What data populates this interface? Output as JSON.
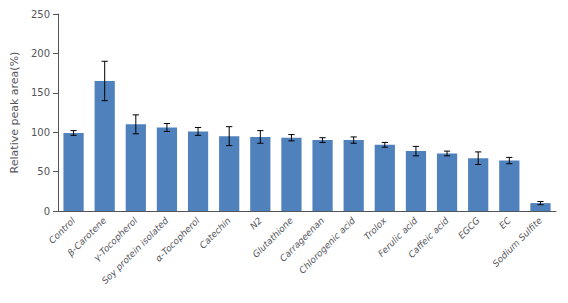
{
  "chart_data": {
    "type": "bar",
    "categories": [
      "Control",
      "β-Carotene",
      "γ-Tocopherol",
      "Soy protein isolated",
      "α-Tocopherol",
      "Catechin",
      "N2",
      "Glutathione",
      "Carrageenan",
      "Chlorogenic acid",
      "Trolox",
      "Ferulic acid",
      "Caffeic acid",
      "EGCG",
      "EC",
      "Sodium Sulfite"
    ],
    "values": [
      99,
      165,
      110,
      106,
      101,
      95,
      94,
      93,
      90,
      90,
      84,
      76,
      73,
      67,
      64,
      10
    ],
    "errors": [
      3,
      25,
      12,
      5,
      5,
      12,
      8,
      4,
      3,
      4,
      3,
      6,
      3,
      8,
      4,
      2
    ],
    "color": "#4f81bd",
    "ylabel": "Relative peak area(%)",
    "ylim": [
      0,
      250
    ],
    "yticks": [
      0,
      50,
      100,
      150,
      200,
      250
    ],
    "grid": false
  }
}
